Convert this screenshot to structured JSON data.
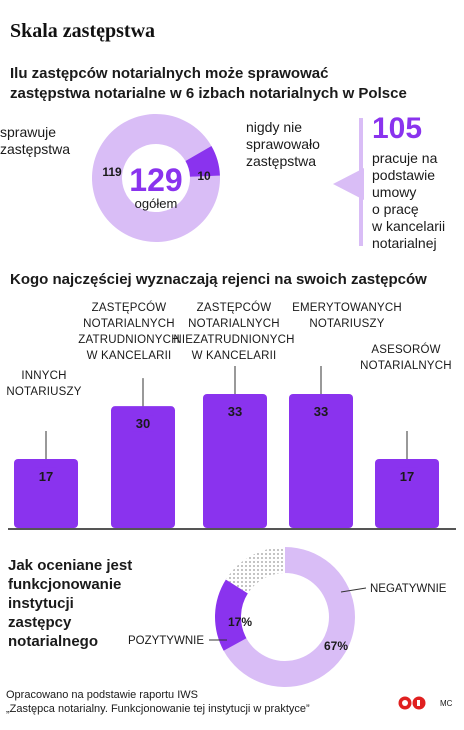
{
  "title": "Skala zastępstwa",
  "section1": {
    "title_line1": "Ilu zastępców notarialnych może sprawować",
    "title_line2": "zastępstwa notarialne w 6 izbach notarialnych w Polsce",
    "total_value": "129",
    "total_label": "ogółem",
    "left_label_line1": "sprawuje",
    "left_label_line2": "zastępstwa",
    "right_label_line1": "nigdy nie",
    "right_label_line2": "sprawowało",
    "right_label_line3": "zastępstwa",
    "side_value": "105",
    "side_text_lines": [
      "pracuje na",
      "podstawie",
      "umowy",
      "o pracę",
      "w kancelarii",
      "notarialnej"
    ]
  },
  "section2": {
    "title": "Kogo najczęściej wyznaczają rejenci na swoich zastępców",
    "label_lines": [
      [
        "INNYCH",
        "NOTARIUSZY"
      ],
      [
        "ZASTĘPCÓW",
        "NOTARIALNYCH",
        "ZATRUDNIONYCH",
        "W KANCELARII"
      ],
      [
        "ZASTĘPCÓW",
        "NOTARIALNYCH",
        "NIEZATRUDNIONYCH",
        "W KANCELARII"
      ],
      [
        "EMERYTOWANYCH",
        "NOTARIUSZY"
      ],
      [
        "ASESORÓW",
        "NOTARIALNYCH"
      ]
    ]
  },
  "section3": {
    "title_lines": [
      "Jak oceniane jest",
      "funkcjonowanie",
      "instytucji",
      "zastępcy",
      "notarialnego"
    ],
    "negative_label": "NEGATYWNIE",
    "positive_label": "POZYTYWNIE"
  },
  "footer": {
    "source_line1": "Opracowano na podstawie raportu IWS",
    "source_line2": "„Zastępca notarialny. Funkcjonowanie tej instytucji w praktyce”",
    "author": "MC"
  },
  "colors": {
    "accent": "#8a33ee",
    "light": "#d9bdf6",
    "text": "#1a1a1a"
  },
  "chart_data": [
    {
      "type": "pie",
      "labels": [
        "sprawuje zastępstwa",
        "nigdy nie sprawowało zastępstwa"
      ],
      "values": [
        119,
        10
      ],
      "total": 129
    },
    {
      "type": "bar",
      "categories": [
        "INNYCH NOTARIUSZY",
        "ZASTĘPCÓW NOTARIALNYCH ZATRUDNIONYCH W KANCELARII",
        "ZASTĘPCÓW NOTARIALNYCH NIEZATRUDNIONYCH W KANCELARII",
        "EMERYTOWANYCH NOTARIUSZY",
        "ASESORÓW NOTARIALNYCH"
      ],
      "values": [
        17,
        30,
        33,
        33,
        17
      ],
      "ylim": [
        0,
        35
      ]
    },
    {
      "type": "pie",
      "labels": [
        "NEGATYWNIE",
        "POZYTYWNIE",
        ""
      ],
      "values": [
        67,
        17,
        16
      ],
      "value_labels": [
        "67%",
        "17%",
        ""
      ]
    }
  ]
}
